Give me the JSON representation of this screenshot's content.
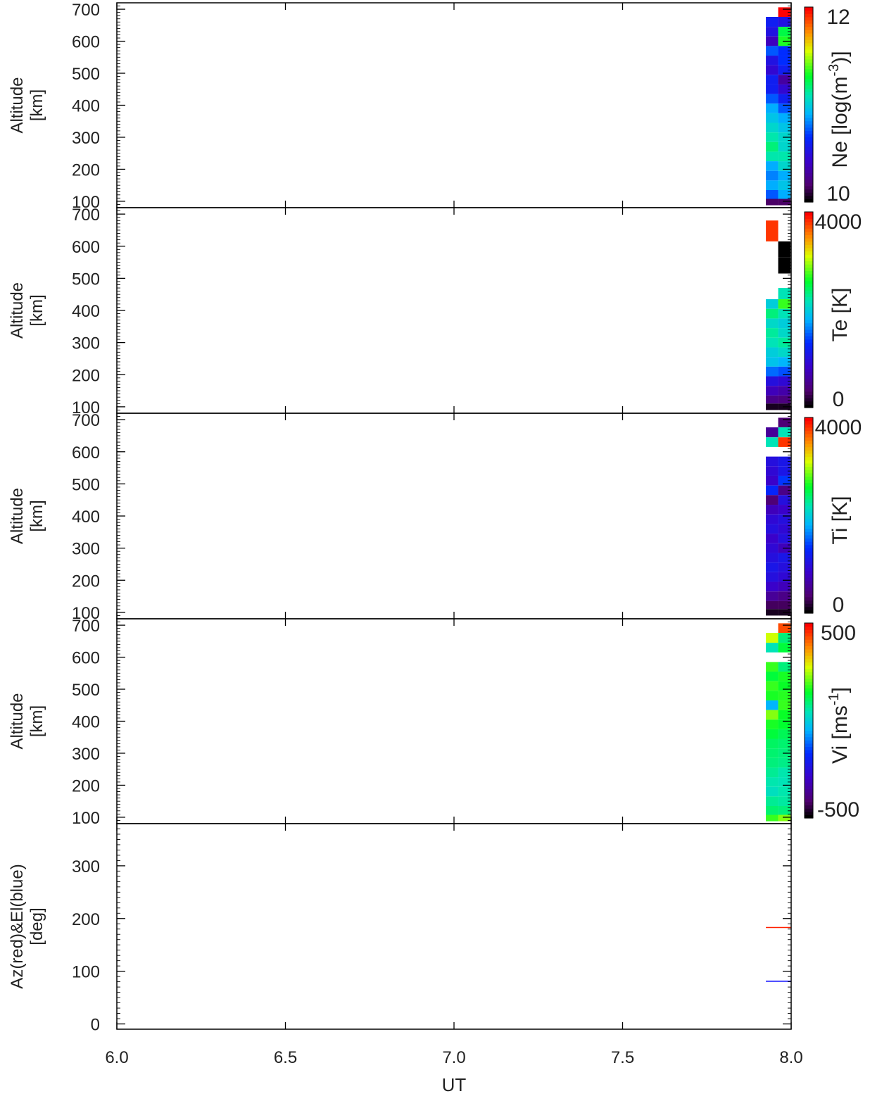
{
  "chart_data": [
    {
      "type": "heatmap",
      "ylabel": [
        "Altitude",
        "[km]"
      ],
      "ylim": [
        80,
        720
      ],
      "yticks": [
        "100",
        "200",
        "300",
        "400",
        "500",
        "600",
        "700"
      ],
      "colorbar": {
        "label": "Ne [log(m",
        "label_sup": "-3",
        "label_end": ")]",
        "max_label": "12",
        "min_label": "10",
        "range": [
          9.6,
          12.3
        ]
      },
      "series": [
        {
          "x": [
            7.9375,
            7.96875
          ],
          "y": [
            692,
            660,
            630,
            600,
            570,
            540,
            510,
            480,
            450,
            420,
            390,
            360,
            330,
            300,
            270,
            240,
            210,
            180,
            150,
            120,
            95
          ],
          "values": [
            [
              null,
              12.3
            ],
            [
              10.4,
              10.3
            ],
            [
              10.3,
              11.3
            ],
            [
              10.1,
              11.4
            ],
            [
              10.6,
              10.5
            ],
            [
              10.3,
              10.5
            ],
            [
              10.2,
              10.4
            ],
            [
              10.4,
              10.0
            ],
            [
              10.4,
              10.2
            ],
            [
              10.6,
              10.4
            ],
            [
              10.8,
              10.6
            ],
            [
              10.9,
              10.8
            ],
            [
              11.0,
              10.9
            ],
            [
              11.1,
              11.0
            ],
            [
              11.2,
              11.0
            ],
            [
              11.1,
              11.1
            ],
            [
              10.8,
              11.0
            ],
            [
              10.7,
              10.8
            ],
            [
              10.8,
              10.9
            ],
            [
              10.6,
              10.8
            ],
            [
              9.8,
              9.8
            ]
          ]
        }
      ]
    },
    {
      "type": "heatmap",
      "ylabel": [
        "Altitude",
        "[km]"
      ],
      "ylim": [
        80,
        720
      ],
      "yticks": [
        "100",
        "200",
        "300",
        "400",
        "500",
        "600",
        "700"
      ],
      "colorbar": {
        "label": "Te [K]",
        "max_label": "4000",
        "min_label": "0",
        "range": [
          -200,
          4200
        ]
      },
      "series": [
        {
          "x": [
            7.9375,
            7.96875
          ],
          "y": [
            640,
            590,
            540,
            490,
            450,
            420,
            390,
            360,
            330,
            300,
            270,
            240,
            210,
            180,
            150,
            120,
            100
          ],
          "values": [
            [
              4000,
              null
            ],
            [
              null,
              -200
            ],
            [
              null,
              -200
            ],
            [
              null,
              null
            ],
            [
              null,
              2200
            ],
            [
              2000,
              2800
            ],
            [
              2400,
              2200
            ],
            [
              2100,
              2000
            ],
            [
              2300,
              2100
            ],
            [
              2200,
              2300
            ],
            [
              2000,
              2100
            ],
            [
              1900,
              1800
            ],
            [
              1500,
              1400
            ],
            [
              900,
              800
            ],
            [
              600,
              500
            ],
            [
              300,
              250
            ],
            [
              -100,
              -100
            ]
          ]
        }
      ]
    },
    {
      "type": "heatmap",
      "ylabel": [
        "Altitude",
        "[km]"
      ],
      "ylim": [
        80,
        720
      ],
      "yticks": [
        "100",
        "200",
        "300",
        "400",
        "500",
        "600",
        "700"
      ],
      "colorbar": {
        "label": "Ti [K]",
        "max_label": "4000",
        "min_label": "0",
        "range": [
          -200,
          4200
        ]
      },
      "series": [
        {
          "x": [
            7.9375,
            7.96875
          ],
          "y": [
            692,
            660,
            630,
            600,
            570,
            540,
            510,
            480,
            450,
            420,
            390,
            360,
            330,
            300,
            270,
            240,
            210,
            180,
            150,
            120,
            100
          ],
          "values": [
            [
              null,
              200
            ],
            [
              400,
              2200
            ],
            [
              2200,
              4000
            ],
            [
              null,
              null
            ],
            [
              900,
              1000
            ],
            [
              800,
              1000
            ],
            [
              700,
              1300
            ],
            [
              1200,
              300
            ],
            [
              200,
              900
            ],
            [
              600,
              700
            ],
            [
              800,
              900
            ],
            [
              900,
              800
            ],
            [
              700,
              900
            ],
            [
              800,
              600
            ],
            [
              900,
              1000
            ],
            [
              1000,
              900
            ],
            [
              900,
              800
            ],
            [
              700,
              600
            ],
            [
              400,
              300
            ],
            [
              100,
              100
            ],
            [
              -100,
              -100
            ]
          ]
        }
      ]
    },
    {
      "type": "heatmap",
      "ylabel": [
        "Altitude",
        "[km]"
      ],
      "ylim": [
        80,
        720
      ],
      "yticks": [
        "100",
        "200",
        "300",
        "400",
        "500",
        "600",
        "700"
      ],
      "colorbar": {
        "label": "Vi [ms",
        "label_sup": "-1",
        "label_end": "]",
        "max_label": "500",
        "min_label": "-500",
        "range": [
          -550,
          550
        ]
      },
      "series": [
        {
          "x": [
            7.9375,
            7.96875
          ],
          "y": [
            692,
            660,
            630,
            600,
            570,
            540,
            510,
            480,
            450,
            420,
            390,
            360,
            330,
            300,
            270,
            240,
            210,
            180,
            150,
            120,
            95
          ],
          "values": [
            [
              null,
              480
            ],
            [
              300,
              100
            ],
            [
              50,
              150
            ],
            [
              null,
              null
            ],
            [
              200,
              100
            ],
            [
              150,
              180
            ],
            [
              200,
              170
            ],
            [
              180,
              190
            ],
            [
              -50,
              200
            ],
            [
              250,
              170
            ],
            [
              180,
              160
            ],
            [
              150,
              130
            ],
            [
              120,
              110
            ],
            [
              110,
              100
            ],
            [
              100,
              90
            ],
            [
              80,
              60
            ],
            [
              60,
              50
            ],
            [
              40,
              60
            ],
            [
              80,
              70
            ],
            [
              110,
              100
            ],
            [
              200,
              250
            ]
          ]
        }
      ]
    },
    {
      "type": "line",
      "ylabel": [
        "Az(red)&El(blue)",
        "[deg]"
      ],
      "ylim": [
        -10,
        380
      ],
      "yticks": [
        "0",
        "100",
        "200",
        "300"
      ],
      "xlabel": "UT",
      "xlim": [
        6.0,
        8.0
      ],
      "xticks": [
        "6.0",
        "6.5",
        "7.0",
        "7.5",
        "8.0"
      ],
      "series": [
        {
          "x": [
            7.925,
            8.0
          ],
          "values": [
            183,
            183
          ],
          "color": "#ff2000"
        },
        {
          "x": [
            7.925,
            8.0
          ],
          "values": [
            81,
            81
          ],
          "color": "#0000ff"
        }
      ]
    }
  ]
}
